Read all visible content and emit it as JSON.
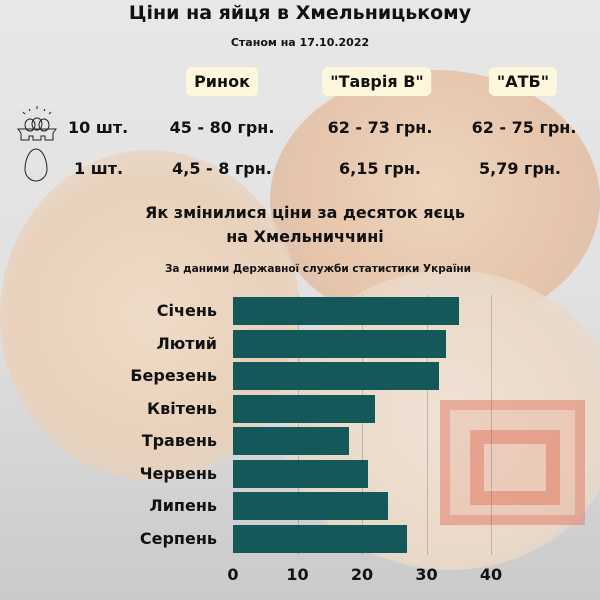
{
  "title": "Ціни на яйця в Хмельницькому",
  "date": "Станом на 17.10.2022",
  "stores": [
    "Ринок",
    "\"Таврія В\"",
    "\"АТБ\""
  ],
  "rows": [
    {
      "icon": "egg-carton-icon",
      "label": "10 шт.",
      "prices": [
        "45 - 80 грн.",
        "62 - 73 грн.",
        "62 - 75 грн."
      ]
    },
    {
      "icon": "egg-icon",
      "label": "1 шт.",
      "prices": [
        "4,5 - 8 грн.",
        "6,15 грн.",
        "5,79 грн."
      ]
    }
  ],
  "chart_title_1": "Як змінилися ціни за десяток яєць",
  "chart_title_2": "на Хмельниччині",
  "source": "За даними Державної служби статистики України",
  "colors": {
    "bar": "#14585a",
    "pill": "#fdf8dc",
    "logo": "#e05a3a"
  },
  "chart_data": {
    "type": "bar",
    "orientation": "horizontal",
    "categories": [
      "Січень",
      "Лютий",
      "Березень",
      "Квітень",
      "Травень",
      "Червень",
      "Липень",
      "Серпень"
    ],
    "values": [
      35,
      33,
      32,
      22,
      18,
      21,
      24,
      27
    ],
    "xlim": [
      0,
      40
    ],
    "xticks": [
      "0",
      "10",
      "20",
      "30",
      "40"
    ],
    "grid": true
  }
}
